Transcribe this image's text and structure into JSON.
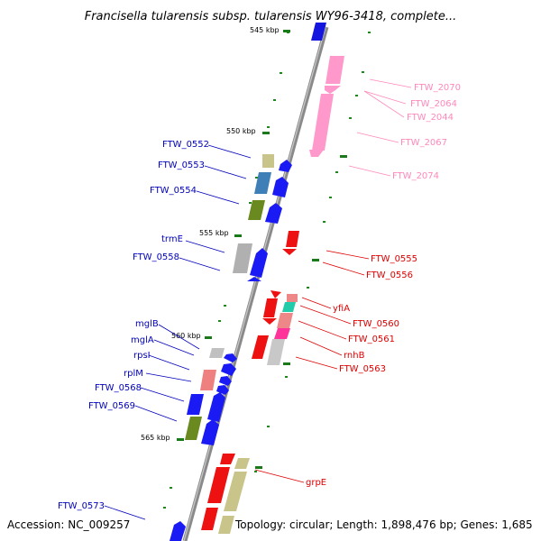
{
  "title": "Francisella tularensis subsp. tularensis WY96-3418, complete...",
  "footer": {
    "accession": "Accession: NC_009257",
    "topology": "Topology: circular; Length: 1,898,476 bp; Genes: 1,685"
  },
  "ticks": [
    "545 kbp",
    "550 kbp",
    "555 kbp",
    "560 kbp",
    "565 kbp"
  ],
  "colors": {
    "forward_label": "#0000bb",
    "reverse_label": "#dd0000",
    "pink_label": "#ff88bb",
    "backbone": "#888888",
    "tick_mark": "#1a7a1a"
  },
  "labels_left": [
    "FTW_0552",
    "FTW_0553",
    "FTW_0554",
    "trmE",
    "FTW_0558",
    "mglB",
    "mglA",
    "rpsI",
    "rplM",
    "FTW_0568",
    "FTW_0569",
    "FTW_0573"
  ],
  "labels_right_pink": [
    "FTW_2070",
    "FTW_2064",
    "FTW_2044",
    "FTW_2067",
    "FTW_2074"
  ],
  "labels_right_red": [
    "FTW_0555",
    "FTW_0556",
    "yfiA",
    "FTW_0560",
    "FTW_0561",
    "rnhB",
    "FTW_0563",
    "grpE"
  ]
}
